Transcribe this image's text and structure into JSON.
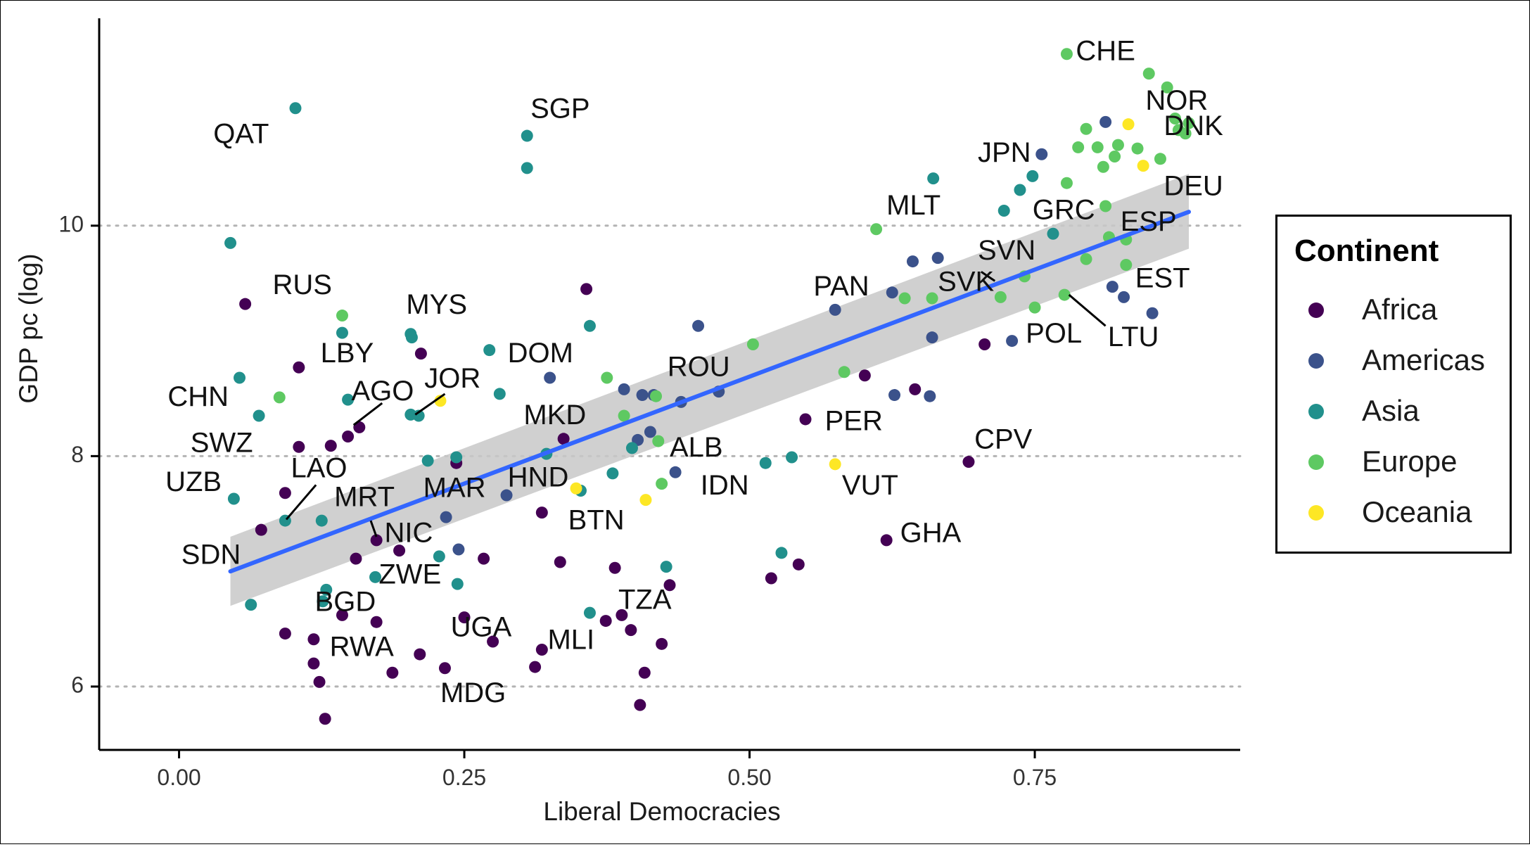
{
  "chart_data": {
    "type": "scatter",
    "title": "",
    "xlabel": "Liberal Democracies",
    "ylabel": "GDP pc (log)",
    "xlim": [
      -0.07,
      0.93
    ],
    "ylim": [
      5.45,
      11.8
    ],
    "x_ticks": [
      0.0,
      0.25,
      0.5,
      0.75
    ],
    "x_tick_labels": [
      "0.00",
      "0.25",
      "0.50",
      "0.75"
    ],
    "y_ticks": [
      6,
      8,
      10
    ],
    "y_tick_labels": [
      "6",
      "8",
      "10"
    ],
    "grid": "horizontal dotted at y ticks",
    "legend": {
      "title": "Continent",
      "placement": "right",
      "entries": [
        "Africa",
        "Americas",
        "Asia",
        "Europe",
        "Oceania"
      ]
    },
    "colors": {
      "Africa": "#440154",
      "Americas": "#3b528b",
      "Asia": "#21908c",
      "Europe": "#5ec962",
      "Oceania": "#fde725",
      "fit_line": "#3366ff",
      "ribbon": "#c8c8c8"
    },
    "fit": {
      "method": "linear",
      "x": [
        0.045,
        0.885
      ],
      "y": [
        7.0,
        10.12
      ],
      "ci_upper": [
        7.3,
        10.45
      ],
      "ci_lower": [
        6.7,
        9.8
      ]
    },
    "series": [
      {
        "name": "Africa",
        "points": [
          [
            0.058,
            9.32
          ],
          [
            0.105,
            8.77
          ],
          [
            0.105,
            8.08
          ],
          [
            0.148,
            8.17
          ],
          [
            0.158,
            8.25
          ],
          [
            0.133,
            8.09
          ],
          [
            0.212,
            8.89
          ],
          [
            0.357,
            9.45
          ],
          [
            0.337,
            8.15
          ],
          [
            0.243,
            7.94
          ],
          [
            0.093,
            7.68
          ],
          [
            0.072,
            7.36
          ],
          [
            0.173,
            7.27
          ],
          [
            0.193,
            7.18
          ],
          [
            0.155,
            7.11
          ],
          [
            0.267,
            7.11
          ],
          [
            0.334,
            7.08
          ],
          [
            0.382,
            7.03
          ],
          [
            0.43,
            6.88
          ],
          [
            0.25,
            6.6
          ],
          [
            0.275,
            6.39
          ],
          [
            0.093,
            6.46
          ],
          [
            0.118,
            6.41
          ],
          [
            0.143,
            6.62
          ],
          [
            0.173,
            6.56
          ],
          [
            0.118,
            6.2
          ],
          [
            0.123,
            6.04
          ],
          [
            0.187,
            6.12
          ],
          [
            0.211,
            6.28
          ],
          [
            0.233,
            6.16
          ],
          [
            0.128,
            5.72
          ],
          [
            0.318,
            6.32
          ],
          [
            0.312,
            6.17
          ],
          [
            0.374,
            6.57
          ],
          [
            0.388,
            6.62
          ],
          [
            0.396,
            6.49
          ],
          [
            0.408,
            6.12
          ],
          [
            0.404,
            5.84
          ],
          [
            0.423,
            6.37
          ],
          [
            0.318,
            7.51
          ],
          [
            0.519,
            6.94
          ],
          [
            0.543,
            7.06
          ],
          [
            0.549,
            8.32
          ],
          [
            0.601,
            8.7
          ],
          [
            0.645,
            8.58
          ],
          [
            0.62,
            7.27
          ],
          [
            0.692,
            7.95
          ],
          [
            0.706,
            8.97
          ]
        ]
      },
      {
        "name": "Americas",
        "points": [
          [
            0.325,
            8.68
          ],
          [
            0.39,
            8.58
          ],
          [
            0.406,
            8.53
          ],
          [
            0.413,
            8.21
          ],
          [
            0.416,
            8.53
          ],
          [
            0.402,
            8.14
          ],
          [
            0.44,
            8.47
          ],
          [
            0.455,
            9.13
          ],
          [
            0.473,
            8.56
          ],
          [
            0.287,
            7.66
          ],
          [
            0.234,
            7.47
          ],
          [
            0.245,
            7.19
          ],
          [
            0.435,
            7.86
          ],
          [
            0.575,
            9.27
          ],
          [
            0.625,
            9.42
          ],
          [
            0.627,
            8.53
          ],
          [
            0.643,
            9.69
          ],
          [
            0.658,
            8.52
          ],
          [
            0.66,
            9.03
          ],
          [
            0.665,
            9.72
          ],
          [
            0.73,
            9.0
          ],
          [
            0.756,
            10.62
          ],
          [
            0.812,
            10.9
          ],
          [
            0.818,
            9.47
          ],
          [
            0.828,
            9.38
          ],
          [
            0.853,
            9.24
          ]
        ]
      },
      {
        "name": "Asia",
        "points": [
          [
            0.102,
            11.02
          ],
          [
            0.305,
            10.78
          ],
          [
            0.305,
            10.5
          ],
          [
            0.045,
            9.85
          ],
          [
            0.053,
            8.68
          ],
          [
            0.07,
            8.35
          ],
          [
            0.048,
            7.63
          ],
          [
            0.093,
            7.44
          ],
          [
            0.125,
            7.44
          ],
          [
            0.129,
            6.84
          ],
          [
            0.126,
            6.74
          ],
          [
            0.063,
            6.71
          ],
          [
            0.143,
            9.07
          ],
          [
            0.148,
            8.49
          ],
          [
            0.203,
            9.06
          ],
          [
            0.204,
            9.03
          ],
          [
            0.203,
            8.36
          ],
          [
            0.21,
            8.35
          ],
          [
            0.218,
            7.96
          ],
          [
            0.228,
            7.13
          ],
          [
            0.243,
            7.99
          ],
          [
            0.244,
            6.89
          ],
          [
            0.172,
            6.95
          ],
          [
            0.272,
            8.92
          ],
          [
            0.281,
            8.54
          ],
          [
            0.322,
            8.02
          ],
          [
            0.36,
            9.13
          ],
          [
            0.36,
            6.64
          ],
          [
            0.38,
            7.85
          ],
          [
            0.397,
            8.07
          ],
          [
            0.352,
            7.7
          ],
          [
            0.427,
            7.04
          ],
          [
            0.514,
            7.94
          ],
          [
            0.528,
            7.16
          ],
          [
            0.537,
            7.99
          ],
          [
            0.661,
            10.41
          ],
          [
            0.723,
            10.13
          ],
          [
            0.737,
            10.31
          ],
          [
            0.748,
            10.43
          ],
          [
            0.766,
            9.93
          ]
        ]
      },
      {
        "name": "Europe",
        "points": [
          [
            0.143,
            9.22
          ],
          [
            0.088,
            8.51
          ],
          [
            0.375,
            8.68
          ],
          [
            0.39,
            8.35
          ],
          [
            0.418,
            8.52
          ],
          [
            0.42,
            8.13
          ],
          [
            0.423,
            7.76
          ],
          [
            0.503,
            8.97
          ],
          [
            0.583,
            8.73
          ],
          [
            0.611,
            9.97
          ],
          [
            0.636,
            9.37
          ],
          [
            0.66,
            9.37
          ],
          [
            0.72,
            9.38
          ],
          [
            0.741,
            9.56
          ],
          [
            0.75,
            9.29
          ],
          [
            0.776,
            9.4
          ],
          [
            0.778,
            11.49
          ],
          [
            0.778,
            10.37
          ],
          [
            0.788,
            10.68
          ],
          [
            0.795,
            10.84
          ],
          [
            0.795,
            9.71
          ],
          [
            0.805,
            10.68
          ],
          [
            0.81,
            10.51
          ],
          [
            0.812,
            10.17
          ],
          [
            0.815,
            9.9
          ],
          [
            0.82,
            10.6
          ],
          [
            0.823,
            10.7
          ],
          [
            0.83,
            9.66
          ],
          [
            0.83,
            9.88
          ],
          [
            0.84,
            10.67
          ],
          [
            0.85,
            11.32
          ],
          [
            0.86,
            10.58
          ],
          [
            0.866,
            11.2
          ],
          [
            0.873,
            10.93
          ],
          [
            0.876,
            10.83
          ],
          [
            0.882,
            10.8
          ],
          [
            0.885,
            10.89
          ]
        ]
      },
      {
        "name": "Oceania",
        "points": [
          [
            0.229,
            8.48
          ],
          [
            0.348,
            7.72
          ],
          [
            0.409,
            7.62
          ],
          [
            0.575,
            7.93
          ],
          [
            0.832,
            10.88
          ],
          [
            0.845,
            10.52
          ]
        ]
      }
    ],
    "annotations": [
      {
        "text": "QAT",
        "x": 0.03,
        "y": 10.78
      },
      {
        "text": "SGP",
        "x": 0.308,
        "y": 11.0
      },
      {
        "text": "CHE",
        "x": 0.786,
        "y": 11.5
      },
      {
        "text": "NOR",
        "x": 0.847,
        "y": 11.07
      },
      {
        "text": "DNK",
        "x": 0.863,
        "y": 10.85
      },
      {
        "text": "JPN",
        "x": 0.7,
        "y": 10.62
      },
      {
        "text": "DEU",
        "x": 0.863,
        "y": 10.33
      },
      {
        "text": "MLT",
        "x": 0.62,
        "y": 10.16
      },
      {
        "text": "GRC",
        "x": 0.748,
        "y": 10.12
      },
      {
        "text": "ESP",
        "x": 0.825,
        "y": 10.02
      },
      {
        "text": "SVN",
        "x": 0.7,
        "y": 9.77
      },
      {
        "text": "SVK",
        "x": 0.665,
        "y": 9.5
      },
      {
        "text": "EST",
        "x": 0.838,
        "y": 9.53
      },
      {
        "text": "PAN",
        "x": 0.556,
        "y": 9.46
      },
      {
        "text": "POL",
        "x": 0.742,
        "y": 9.05
      },
      {
        "text": "LTU",
        "x": 0.814,
        "y": 9.02
      },
      {
        "text": "RUS",
        "x": 0.082,
        "y": 9.47
      },
      {
        "text": "MYS",
        "x": 0.199,
        "y": 9.3
      },
      {
        "text": "LBY",
        "x": 0.124,
        "y": 8.88
      },
      {
        "text": "DOM",
        "x": 0.288,
        "y": 8.88
      },
      {
        "text": "ROU",
        "x": 0.428,
        "y": 8.76
      },
      {
        "text": "CHN",
        "x": -0.01,
        "y": 8.5
      },
      {
        "text": "AGO",
        "x": 0.151,
        "y": 8.55
      },
      {
        "text": "JOR",
        "x": 0.215,
        "y": 8.66
      },
      {
        "text": "MKD",
        "x": 0.302,
        "y": 8.34
      },
      {
        "text": "PER",
        "x": 0.566,
        "y": 8.29
      },
      {
        "text": "SWZ",
        "x": 0.01,
        "y": 8.1
      },
      {
        "text": "ALB",
        "x": 0.43,
        "y": 8.06
      },
      {
        "text": "CPV",
        "x": 0.697,
        "y": 8.13
      },
      {
        "text": "UZB",
        "x": -0.012,
        "y": 7.76
      },
      {
        "text": "LAO",
        "x": 0.098,
        "y": 7.88
      },
      {
        "text": "HND",
        "x": 0.288,
        "y": 7.8
      },
      {
        "text": "MRT",
        "x": 0.136,
        "y": 7.63
      },
      {
        "text": "MAR",
        "x": 0.214,
        "y": 7.71
      },
      {
        "text": "IDN",
        "x": 0.457,
        "y": 7.73
      },
      {
        "text": "VUT",
        "x": 0.581,
        "y": 7.73
      },
      {
        "text": "BTN",
        "x": 0.341,
        "y": 7.43
      },
      {
        "text": "NIC",
        "x": 0.18,
        "y": 7.32
      },
      {
        "text": "GHA",
        "x": 0.632,
        "y": 7.32
      },
      {
        "text": "SDN",
        "x": 0.002,
        "y": 7.13
      },
      {
        "text": "ZWE",
        "x": 0.175,
        "y": 6.96
      },
      {
        "text": "BGD",
        "x": 0.119,
        "y": 6.72
      },
      {
        "text": "TZA",
        "x": 0.385,
        "y": 6.74
      },
      {
        "text": "UGA",
        "x": 0.238,
        "y": 6.5
      },
      {
        "text": "MLI",
        "x": 0.323,
        "y": 6.39
      },
      {
        "text": "RWA",
        "x": 0.132,
        "y": 6.33
      },
      {
        "text": "MDG",
        "x": 0.229,
        "y": 5.93
      }
    ],
    "leader_lines": [
      {
        "x": [
          0.153,
          0.178
        ],
        "y": [
          8.27,
          8.46
        ]
      },
      {
        "x": [
          0.207,
          0.233
        ],
        "y": [
          8.36,
          8.54
        ]
      },
      {
        "x": [
          0.094,
          0.12
        ],
        "y": [
          7.45,
          7.75
        ]
      },
      {
        "x": [
          0.168,
          0.173
        ],
        "y": [
          7.44,
          7.3
        ]
      },
      {
        "x": [
          0.703,
          0.715
        ],
        "y": [
          9.6,
          9.52
        ]
      },
      {
        "x": [
          0.78,
          0.812
        ],
        "y": [
          9.4,
          9.13
        ]
      }
    ]
  }
}
